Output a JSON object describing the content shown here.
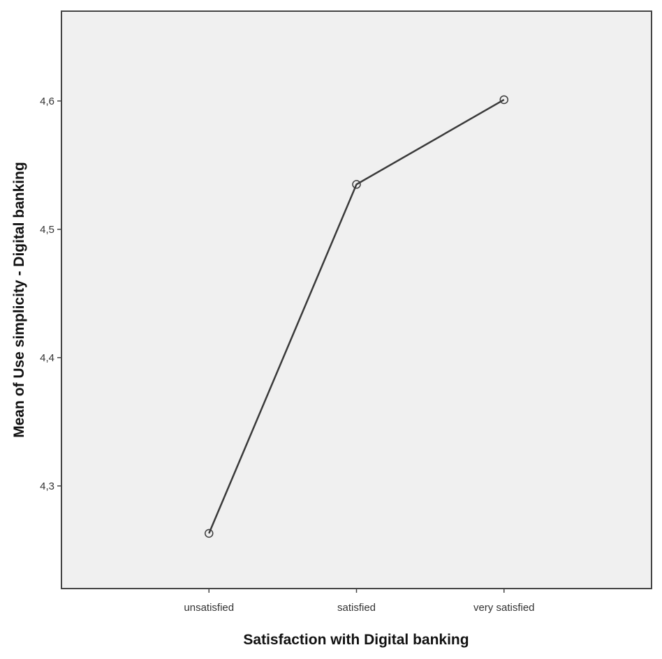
{
  "chart_data": {
    "type": "line",
    "title": "",
    "xlabel": "Satisfaction with Digital banking",
    "ylabel": "Mean of Use simplicity - Digital banking",
    "categories": [
      "unsatisfied",
      "satisfied",
      "very satisfied"
    ],
    "series": [
      {
        "values": [
          4.263,
          4.535,
          4.601
        ],
        "marker": "circle-open"
      }
    ],
    "ylim": [
      4.22,
      4.67
    ],
    "yticks": [
      4.3,
      4.4,
      4.5,
      4.6
    ],
    "ytick_labels": [
      "4,3",
      "4,4",
      "4,5",
      "4,6"
    ],
    "grid": false,
    "legend": "none",
    "colors": {
      "plot_background": "#f0f0f0",
      "line": "#3a3a3a",
      "frame": "#444444"
    }
  }
}
